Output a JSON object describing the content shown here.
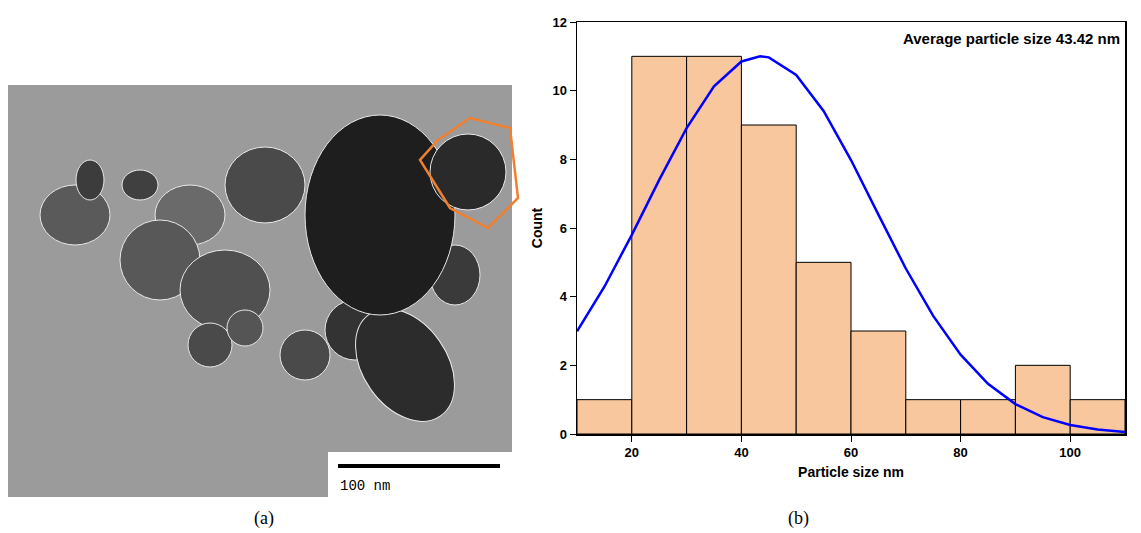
{
  "chart_data": {
    "type": "histogram",
    "panel_label": "(b)",
    "x_label": "Particle size nm",
    "y_label": "Count",
    "annotations": [
      "Average particle size 43.42 nm"
    ],
    "bins": [
      10,
      20,
      30,
      40,
      50,
      60,
      70,
      80,
      90,
      100,
      110
    ],
    "counts": [
      1,
      11,
      11,
      9,
      5,
      3,
      1,
      1,
      2,
      1
    ],
    "color": "#f9c79d",
    "fit_curve": {
      "type": "line",
      "color": "#0000ff",
      "x": [
        10,
        15,
        20,
        25,
        30,
        35,
        40,
        43.42,
        45,
        50,
        55,
        60,
        65,
        70,
        75,
        80,
        85,
        90,
        95,
        100,
        105,
        110
      ],
      "values": [
        2.99,
        4.29,
        5.8,
        7.4,
        8.91,
        10.13,
        10.85,
        11.0,
        10.97,
        10.46,
        9.41,
        7.98,
        6.39,
        4.82,
        3.44,
        2.31,
        1.46,
        0.87,
        0.49,
        0.26,
        0.13,
        0.06
      ]
    },
    "xlim": [
      10,
      110
    ],
    "xticks": [
      20,
      40,
      60,
      80,
      100
    ],
    "ylim": [
      0,
      12
    ],
    "yticks": [
      0,
      2,
      4,
      6,
      8,
      10,
      12
    ]
  },
  "image_panel": {
    "panel_label": "(a)",
    "scale_bar": "100 nm"
  }
}
